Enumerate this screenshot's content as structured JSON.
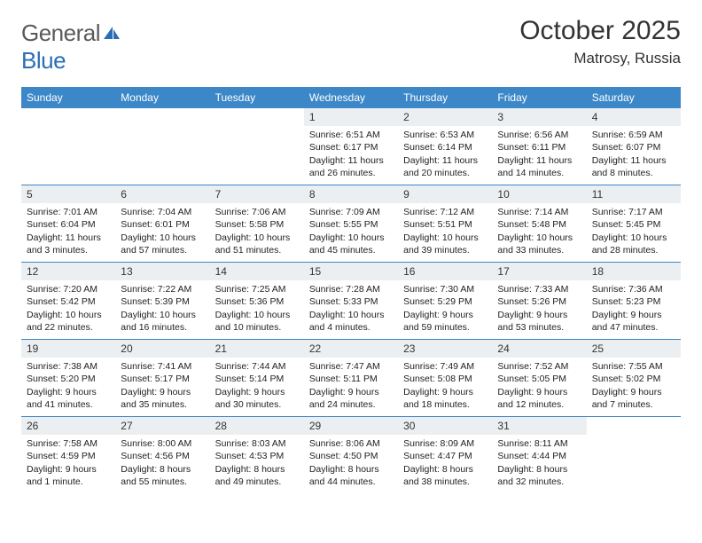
{
  "logo": {
    "text_general": "General",
    "text_blue": "Blue"
  },
  "title": "October 2025",
  "location": "Matrosy, Russia",
  "colors": {
    "header_bar": "#3b87c8",
    "daynum_bg": "#eceff1",
    "border": "#3b87c8",
    "text": "#222222",
    "logo_gray": "#5a5a5a",
    "logo_blue": "#2a6fb5"
  },
  "day_headers": [
    "Sunday",
    "Monday",
    "Tuesday",
    "Wednesday",
    "Thursday",
    "Friday",
    "Saturday"
  ],
  "weeks": [
    [
      {
        "day": "",
        "lines": []
      },
      {
        "day": "",
        "lines": []
      },
      {
        "day": "",
        "lines": []
      },
      {
        "day": "1",
        "lines": [
          "Sunrise: 6:51 AM",
          "Sunset: 6:17 PM",
          "Daylight: 11 hours",
          "and 26 minutes."
        ]
      },
      {
        "day": "2",
        "lines": [
          "Sunrise: 6:53 AM",
          "Sunset: 6:14 PM",
          "Daylight: 11 hours",
          "and 20 minutes."
        ]
      },
      {
        "day": "3",
        "lines": [
          "Sunrise: 6:56 AM",
          "Sunset: 6:11 PM",
          "Daylight: 11 hours",
          "and 14 minutes."
        ]
      },
      {
        "day": "4",
        "lines": [
          "Sunrise: 6:59 AM",
          "Sunset: 6:07 PM",
          "Daylight: 11 hours",
          "and 8 minutes."
        ]
      }
    ],
    [
      {
        "day": "5",
        "lines": [
          "Sunrise: 7:01 AM",
          "Sunset: 6:04 PM",
          "Daylight: 11 hours",
          "and 3 minutes."
        ]
      },
      {
        "day": "6",
        "lines": [
          "Sunrise: 7:04 AM",
          "Sunset: 6:01 PM",
          "Daylight: 10 hours",
          "and 57 minutes."
        ]
      },
      {
        "day": "7",
        "lines": [
          "Sunrise: 7:06 AM",
          "Sunset: 5:58 PM",
          "Daylight: 10 hours",
          "and 51 minutes."
        ]
      },
      {
        "day": "8",
        "lines": [
          "Sunrise: 7:09 AM",
          "Sunset: 5:55 PM",
          "Daylight: 10 hours",
          "and 45 minutes."
        ]
      },
      {
        "day": "9",
        "lines": [
          "Sunrise: 7:12 AM",
          "Sunset: 5:51 PM",
          "Daylight: 10 hours",
          "and 39 minutes."
        ]
      },
      {
        "day": "10",
        "lines": [
          "Sunrise: 7:14 AM",
          "Sunset: 5:48 PM",
          "Daylight: 10 hours",
          "and 33 minutes."
        ]
      },
      {
        "day": "11",
        "lines": [
          "Sunrise: 7:17 AM",
          "Sunset: 5:45 PM",
          "Daylight: 10 hours",
          "and 28 minutes."
        ]
      }
    ],
    [
      {
        "day": "12",
        "lines": [
          "Sunrise: 7:20 AM",
          "Sunset: 5:42 PM",
          "Daylight: 10 hours",
          "and 22 minutes."
        ]
      },
      {
        "day": "13",
        "lines": [
          "Sunrise: 7:22 AM",
          "Sunset: 5:39 PM",
          "Daylight: 10 hours",
          "and 16 minutes."
        ]
      },
      {
        "day": "14",
        "lines": [
          "Sunrise: 7:25 AM",
          "Sunset: 5:36 PM",
          "Daylight: 10 hours",
          "and 10 minutes."
        ]
      },
      {
        "day": "15",
        "lines": [
          "Sunrise: 7:28 AM",
          "Sunset: 5:33 PM",
          "Daylight: 10 hours",
          "and 4 minutes."
        ]
      },
      {
        "day": "16",
        "lines": [
          "Sunrise: 7:30 AM",
          "Sunset: 5:29 PM",
          "Daylight: 9 hours",
          "and 59 minutes."
        ]
      },
      {
        "day": "17",
        "lines": [
          "Sunrise: 7:33 AM",
          "Sunset: 5:26 PM",
          "Daylight: 9 hours",
          "and 53 minutes."
        ]
      },
      {
        "day": "18",
        "lines": [
          "Sunrise: 7:36 AM",
          "Sunset: 5:23 PM",
          "Daylight: 9 hours",
          "and 47 minutes."
        ]
      }
    ],
    [
      {
        "day": "19",
        "lines": [
          "Sunrise: 7:38 AM",
          "Sunset: 5:20 PM",
          "Daylight: 9 hours",
          "and 41 minutes."
        ]
      },
      {
        "day": "20",
        "lines": [
          "Sunrise: 7:41 AM",
          "Sunset: 5:17 PM",
          "Daylight: 9 hours",
          "and 35 minutes."
        ]
      },
      {
        "day": "21",
        "lines": [
          "Sunrise: 7:44 AM",
          "Sunset: 5:14 PM",
          "Daylight: 9 hours",
          "and 30 minutes."
        ]
      },
      {
        "day": "22",
        "lines": [
          "Sunrise: 7:47 AM",
          "Sunset: 5:11 PM",
          "Daylight: 9 hours",
          "and 24 minutes."
        ]
      },
      {
        "day": "23",
        "lines": [
          "Sunrise: 7:49 AM",
          "Sunset: 5:08 PM",
          "Daylight: 9 hours",
          "and 18 minutes."
        ]
      },
      {
        "day": "24",
        "lines": [
          "Sunrise: 7:52 AM",
          "Sunset: 5:05 PM",
          "Daylight: 9 hours",
          "and 12 minutes."
        ]
      },
      {
        "day": "25",
        "lines": [
          "Sunrise: 7:55 AM",
          "Sunset: 5:02 PM",
          "Daylight: 9 hours",
          "and 7 minutes."
        ]
      }
    ],
    [
      {
        "day": "26",
        "lines": [
          "Sunrise: 7:58 AM",
          "Sunset: 4:59 PM",
          "Daylight: 9 hours",
          "and 1 minute."
        ]
      },
      {
        "day": "27",
        "lines": [
          "Sunrise: 8:00 AM",
          "Sunset: 4:56 PM",
          "Daylight: 8 hours",
          "and 55 minutes."
        ]
      },
      {
        "day": "28",
        "lines": [
          "Sunrise: 8:03 AM",
          "Sunset: 4:53 PM",
          "Daylight: 8 hours",
          "and 49 minutes."
        ]
      },
      {
        "day": "29",
        "lines": [
          "Sunrise: 8:06 AM",
          "Sunset: 4:50 PM",
          "Daylight: 8 hours",
          "and 44 minutes."
        ]
      },
      {
        "day": "30",
        "lines": [
          "Sunrise: 8:09 AM",
          "Sunset: 4:47 PM",
          "Daylight: 8 hours",
          "and 38 minutes."
        ]
      },
      {
        "day": "31",
        "lines": [
          "Sunrise: 8:11 AM",
          "Sunset: 4:44 PM",
          "Daylight: 8 hours",
          "and 32 minutes."
        ]
      },
      {
        "day": "",
        "lines": []
      }
    ]
  ]
}
